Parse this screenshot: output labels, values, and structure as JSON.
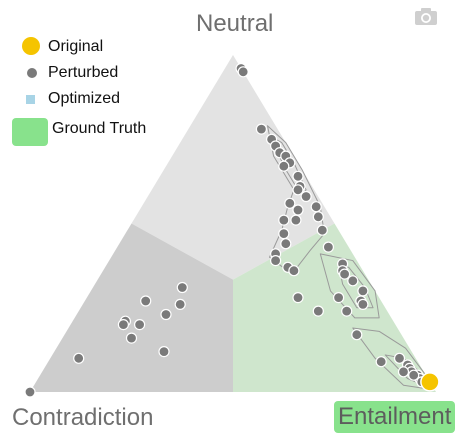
{
  "vertex_labels": {
    "top": "Neutral",
    "left": "Contradiction",
    "right": "Entailment"
  },
  "legend": {
    "original": "Original",
    "perturbed": "Perturbed",
    "optimized": "Optimized",
    "ground_truth": "Ground Truth"
  },
  "toolbar": {
    "camera_icon": "camera-icon"
  },
  "colors": {
    "region_neutral": "#e3e3e3",
    "region_contradiction": "#cdcdcd",
    "region_entailment": "#cfe6cd",
    "perturbed": "#7a7a7a",
    "original": "#f5c400",
    "optimized": "#a8d4e6",
    "ground_truth": "#88e28c",
    "contour": "#9a9a9a"
  },
  "chart_data": {
    "type": "scatter",
    "coordinates": "ternary (contradiction, neutral, entailment) probabilities",
    "vertices": [
      "Contradiction",
      "Neutral",
      "Entailment"
    ],
    "ground_truth": "Entailment",
    "original": [
      [
        0.0,
        0.03,
        0.97
      ]
    ],
    "perturbed": [
      [
        0.0,
        0.96,
        0.04
      ],
      [
        0.0,
        0.95,
        0.05
      ],
      [
        0.04,
        0.78,
        0.18
      ],
      [
        0.03,
        0.75,
        0.22
      ],
      [
        0.03,
        0.73,
        0.24
      ],
      [
        0.03,
        0.71,
        0.26
      ],
      [
        0.02,
        0.7,
        0.28
      ],
      [
        0.02,
        0.68,
        0.3
      ],
      [
        0.04,
        0.67,
        0.29
      ],
      [
        0.02,
        0.64,
        0.34
      ],
      [
        0.03,
        0.61,
        0.36
      ],
      [
        0.03,
        0.58,
        0.39
      ],
      [
        0.04,
        0.6,
        0.36
      ],
      [
        0.08,
        0.56,
        0.36
      ],
      [
        0.07,
        0.54,
        0.39
      ],
      [
        0.09,
        0.51,
        0.4
      ],
      [
        0.12,
        0.51,
        0.37
      ],
      [
        0.14,
        0.47,
        0.39
      ],
      [
        0.02,
        0.55,
        0.43
      ],
      [
        0.03,
        0.52,
        0.45
      ],
      [
        0.04,
        0.48,
        0.48
      ],
      [
        0.15,
        0.44,
        0.41
      ],
      [
        0.19,
        0.41,
        0.4
      ],
      [
        0.2,
        0.39,
        0.41
      ],
      [
        0.18,
        0.37,
        0.45
      ],
      [
        0.17,
        0.36,
        0.47
      ],
      [
        0.05,
        0.43,
        0.52
      ],
      [
        0.04,
        0.38,
        0.58
      ],
      [
        0.05,
        0.36,
        0.59
      ],
      [
        0.05,
        0.35,
        0.6
      ],
      [
        0.04,
        0.33,
        0.63
      ],
      [
        0.03,
        0.3,
        0.67
      ],
      [
        0.05,
        0.27,
        0.68
      ],
      [
        0.05,
        0.26,
        0.69
      ],
      [
        0.1,
        0.28,
        0.62
      ],
      [
        0.1,
        0.24,
        0.66
      ],
      [
        0.2,
        0.28,
        0.52
      ],
      [
        0.17,
        0.24,
        0.59
      ],
      [
        0.47,
        0.31,
        0.22
      ],
      [
        0.5,
        0.26,
        0.24
      ],
      [
        0.58,
        0.27,
        0.15
      ],
      [
        0.55,
        0.23,
        0.22
      ],
      [
        0.63,
        0.2,
        0.17
      ],
      [
        0.66,
        0.21,
        0.13
      ],
      [
        0.67,
        0.16,
        0.17
      ],
      [
        0.67,
        0.2,
        0.13
      ],
      [
        0.83,
        0.1,
        0.07
      ],
      [
        0.61,
        0.12,
        0.27
      ],
      [
        0.11,
        0.17,
        0.72
      ],
      [
        0.09,
        0.09,
        0.82
      ],
      [
        0.04,
        0.1,
        0.86
      ],
      [
        0.03,
        0.08,
        0.89
      ],
      [
        0.03,
        0.07,
        0.9
      ],
      [
        0.03,
        0.06,
        0.91
      ],
      [
        0.02,
        0.05,
        0.93
      ],
      [
        0.02,
        0.04,
        0.94
      ],
      [
        0.03,
        0.05,
        0.92
      ],
      [
        0.02,
        0.03,
        0.95
      ],
      [
        0.05,
        0.06,
        0.89
      ],
      [
        1.0,
        0.0,
        0.0
      ]
    ],
    "optimized": []
  }
}
